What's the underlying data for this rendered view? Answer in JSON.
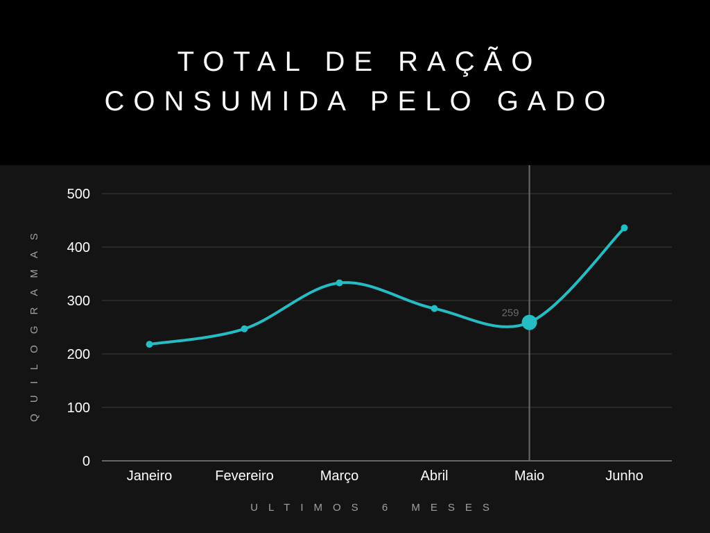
{
  "colors": {
    "header_bg": "#000000",
    "chart_bg": "#141414",
    "line": "#26bcc4",
    "grid": "#3c3c3c",
    "axis": "#b9b9b9",
    "tick_text": "#ffffff",
    "axis_title": "#a0a0a0",
    "value_label": "#6b6b6b",
    "crosshair": "#6b6b6b"
  },
  "chart_data": {
    "type": "line",
    "title": "TOTAL DE RAÇÃO CONSUMIDA PELO GADO",
    "xlabel": "ULTIMOS 6 MESES",
    "ylabel": "QUILOGRAMAS",
    "categories": [
      "Janeiro",
      "Fevereiro",
      "Março",
      "Abril",
      "Maio",
      "Junho"
    ],
    "series": [
      {
        "values": [
          218,
          247,
          333,
          285,
          259,
          436
        ]
      }
    ],
    "ylim": [
      0,
      500
    ],
    "yticks": [
      0,
      100,
      200,
      300,
      400,
      500
    ],
    "grid": true,
    "smooth": true,
    "legend": "none",
    "highlight": {
      "index": 4,
      "value_label": "259"
    }
  }
}
